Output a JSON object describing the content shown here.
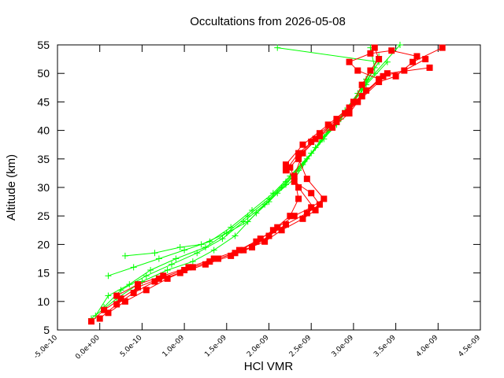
{
  "chart_data": {
    "type": "scatter",
    "title": "Occultations from 2026-05-08",
    "xlabel": "HCl VMR",
    "ylabel": "Altitude (km)",
    "xlim": [
      -5e-10,
      4.5e-09
    ],
    "ylim": [
      5,
      55
    ],
    "grid": false,
    "xticks": [
      "-5.0e-10",
      "0.0e+00",
      "5.0e-10",
      "1.0e-09",
      "1.5e-09",
      "2.0e-09",
      "2.5e-09",
      "3.0e-09",
      "3.5e-09",
      "4.0e-09",
      "4.5e-09"
    ],
    "yticks": [
      "5",
      "10",
      "15",
      "20",
      "25",
      "30",
      "35",
      "40",
      "45",
      "50",
      "55"
    ],
    "series": [
      {
        "color": "#00ff00",
        "marker": "plus",
        "profiles": [
          {
            "x": [
              -5e-11,
              1e-10,
              3.5e-10,
              6e-10,
              9e-10,
              1.25e-09,
              1.5e-09,
              1.75e-09,
              2e-09,
              2.2e-09,
              2.45e-09,
              2.65e-09,
              2.9e-09,
              3.1e-09,
              3.25e-09,
              3.2e-09
            ],
            "y": [
              7.5,
              11,
              13,
              15.5,
              17.5,
              19.5,
              22,
              25,
              28,
              31,
              35,
              39,
              43,
              47,
              51,
              54.5
            ]
          },
          {
            "x": [
              5e-11,
              2.5e-10,
              5.5e-10,
              8.5e-10,
              1.15e-09,
              1.45e-09,
              1.7e-09,
              1.95e-09,
              2.15e-09,
              2.35e-09,
              2.55e-09,
              2.8e-09,
              3e-09,
              3.15e-09,
              3.3e-09
            ],
            "y": [
              9,
              12,
              14.5,
              16.5,
              18.5,
              21,
              24,
              27,
              30,
              33,
              37,
              41,
              45,
              49,
              53
            ]
          },
          {
            "x": [
              1e-10,
              4e-10,
              7e-10,
              1e-09,
              1.3e-09,
              1.55e-09,
              1.8e-09,
              2.05e-09,
              2.25e-09,
              2.5e-09,
              2.7e-09,
              2.95e-09,
              3.15e-09,
              3.4e-09
            ],
            "y": [
              14.5,
              16,
              17.5,
              19,
              20.5,
              23,
              26,
              29,
              32,
              36,
              40,
              44,
              48,
              52
            ]
          },
          {
            "x": [
              -1e-10,
              2e-10,
              5e-10,
              8e-10,
              1.1e-09,
              1.35e-09,
              1.6e-09,
              1.85e-09,
              2.1e-09,
              2.3e-09,
              2.6e-09,
              2.85e-09,
              3.05e-09,
              3.25e-09,
              3.55e-09
            ],
            "y": [
              7,
              10.5,
              13.5,
              15.5,
              17,
              19,
              21.5,
              25.5,
              29,
              31.5,
              38,
              42,
              46.5,
              50,
              55
            ]
          },
          {
            "x": [
              3e-10,
              6.5e-10,
              9.5e-10,
              1.2e-09,
              1.5e-09,
              1.75e-09,
              2e-09,
              2.2e-09,
              2.4e-09,
              2.65e-09,
              2.9e-09,
              3.1e-09,
              3.3e-09,
              2.1e-09
            ],
            "y": [
              18,
              18.5,
              19.5,
              20,
              22,
              24,
              27.5,
              30.5,
              34,
              38.5,
              43.5,
              47.5,
              52,
              54.5
            ]
          }
        ]
      },
      {
        "color": "#ff0000",
        "marker": "square",
        "profiles": [
          {
            "x": [
              -1e-10,
              5e-11,
              2.5e-10,
              4.5e-10,
              7e-10,
              1e-09,
              1.3e-09,
              1.6e-09,
              1.85e-09,
              2.05e-09,
              2.25e-09,
              2.35e-09,
              2.3e-09,
              2.4e-09,
              2.6e-09,
              2.8e-09,
              3e-09,
              3.1e-09,
              3.2e-09,
              3.3e-09,
              3.25e-09
            ],
            "y": [
              6.5,
              8.5,
              10.5,
              12.5,
              14,
              15.5,
              17,
              18.5,
              20.5,
              22.5,
              25,
              28,
              32,
              36,
              39,
              42,
              45,
              48,
              50.5,
              52.5,
              54.5
            ]
          },
          {
            "x": [
              0.0,
              2e-10,
              4e-10,
              6.5e-10,
              9.5e-10,
              1.25e-09,
              1.55e-09,
              1.8e-09,
              2e-09,
              2.2e-09,
              2.45e-09,
              2.6e-09,
              2.5e-09,
              2.3e-09,
              2.2e-09,
              2.4e-09,
              2.7e-09,
              2.95e-09,
              3.15e-09,
              3.4e-09,
              3.9e-09
            ],
            "y": [
              7,
              9.5,
              11.5,
              13.5,
              15,
              16.5,
              18,
              19.5,
              21.5,
              23.5,
              25.5,
              27,
              29,
              31,
              34,
              37.5,
              41,
              44,
              47,
              50,
              51
            ]
          },
          {
            "x": [
              1e-10,
              3e-10,
              5.5e-10,
              8e-10,
              1.1e-09,
              1.4e-09,
              1.7e-09,
              1.95e-09,
              2.15e-09,
              2.4e-09,
              2.55e-09,
              2.35e-09,
              2.25e-09,
              2.5e-09,
              2.8e-09,
              3.05e-09,
              3.3e-09,
              3.5e-09,
              3.7e-09,
              4.05e-09
            ],
            "y": [
              8,
              10,
              12,
              14,
              16,
              17.5,
              19,
              20.5,
              22.5,
              24.5,
              26,
              30,
              33.5,
              38,
              41.5,
              45,
              48.5,
              49.5,
              52,
              54.5
            ]
          },
          {
            "x": [
              2e-10,
              4.5e-10,
              7.5e-10,
              1.05e-09,
              1.35e-09,
              1.65e-09,
              1.9e-09,
              2.1e-09,
              2.3e-09,
              2.5e-09,
              2.65e-09,
              2.45e-09,
              2.35e-09,
              2.6e-09,
              2.9e-09,
              3.1e-09,
              3.35e-09,
              3.6e-09,
              3.85e-09
            ],
            "y": [
              11,
              13,
              14.5,
              16,
              17.5,
              19,
              21,
              23,
              25,
              26.5,
              28,
              31.5,
              35,
              39.5,
              43,
              46,
              49.5,
              50.5,
              52.5
            ]
          },
          {
            "x": [
              2.2e-09,
              2.35e-09,
              2.55e-09,
              2.75e-09,
              2.95e-09,
              3.1e-09,
              3.3e-09,
              3.05e-09,
              2.95e-09,
              3.2e-09,
              3.45e-09,
              3.75e-09
            ],
            "y": [
              33,
              36,
              38.5,
              40.5,
              43,
              46,
              49,
              50.5,
              52,
              53.5,
              54,
              53
            ]
          }
        ]
      }
    ]
  }
}
